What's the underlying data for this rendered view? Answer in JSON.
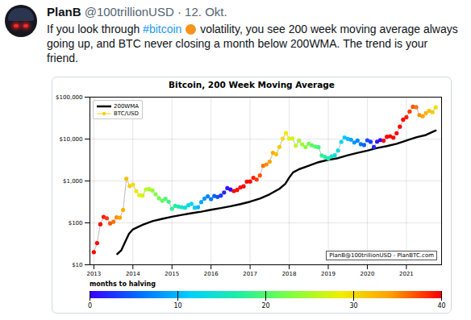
{
  "tweet": {
    "author": "PlanB",
    "handle": "@100trillionUSD",
    "separator": "·",
    "date": "12. Okt.",
    "text": "If you look through #bitcoin volatility, you see 200 week moving average always going up, and BTC never closing a month below 200WMA. The trend is your friend."
  },
  "chart_data": {
    "type": "line",
    "title": "Bitcoin, 200 Week Moving Average",
    "xlim": [
      2012.9,
      2021.9
    ],
    "xticks": [
      2013,
      2014,
      2015,
      2016,
      2017,
      2018,
      2019,
      2020,
      2021
    ],
    "log": "y",
    "ylim": [
      10,
      100000
    ],
    "yticks": [
      {
        "value": 10,
        "label": "$10"
      },
      {
        "value": 100,
        "label": "$100"
      },
      {
        "value": 1000,
        "label": "$1,000"
      },
      {
        "value": 10000,
        "label": "$10,000"
      },
      {
        "value": 100000,
        "label": "$100,000"
      }
    ],
    "grid": true,
    "legend": "upper left",
    "series": [
      {
        "name": "200WMA",
        "color": "#000000",
        "type": "line",
        "x": [
          2013.6,
          2013.7,
          2013.8,
          2013.9,
          2014.0,
          2014.25,
          2014.5,
          2014.75,
          2015.0,
          2015.25,
          2015.5,
          2015.75,
          2016.0,
          2016.25,
          2016.5,
          2016.75,
          2017.0,
          2017.25,
          2017.5,
          2017.75,
          2017.9,
          2018.0,
          2018.1,
          2018.25,
          2018.5,
          2018.75,
          2019.0,
          2019.25,
          2019.5,
          2019.75,
          2020.0,
          2020.25,
          2020.5,
          2020.75,
          2021.0,
          2021.25,
          2021.5,
          2021.75
        ],
        "values": [
          18,
          22,
          35,
          55,
          70,
          90,
          110,
          125,
          140,
          155,
          170,
          185,
          205,
          225,
          250,
          280,
          320,
          380,
          480,
          650,
          850,
          1200,
          1600,
          1900,
          2300,
          2800,
          3200,
          3500,
          4100,
          4700,
          5300,
          6100,
          6800,
          7700,
          9200,
          11000,
          12500,
          16000
        ]
      },
      {
        "name": "BTC/USD",
        "color": "#f2d21b",
        "type": "line",
        "marker": "circle",
        "x": [
          2013,
          2013.083,
          2013.167,
          2013.25,
          2013.333,
          2013.417,
          2013.5,
          2013.583,
          2013.667,
          2013.75,
          2013.833,
          2013.917,
          2014,
          2014.083,
          2014.167,
          2014.25,
          2014.333,
          2014.417,
          2014.5,
          2014.583,
          2014.667,
          2014.75,
          2014.833,
          2014.917,
          2015,
          2015.083,
          2015.167,
          2015.25,
          2015.333,
          2015.417,
          2015.5,
          2015.583,
          2015.667,
          2015.75,
          2015.833,
          2015.917,
          2016,
          2016.083,
          2016.167,
          2016.25,
          2016.333,
          2016.417,
          2016.5,
          2016.583,
          2016.667,
          2016.75,
          2016.833,
          2016.917,
          2017,
          2017.083,
          2017.167,
          2017.25,
          2017.333,
          2017.417,
          2017.5,
          2017.583,
          2017.667,
          2017.75,
          2017.833,
          2017.917,
          2018,
          2018.083,
          2018.167,
          2018.25,
          2018.333,
          2018.417,
          2018.5,
          2018.583,
          2018.667,
          2018.75,
          2018.833,
          2018.917,
          2019,
          2019.083,
          2019.167,
          2019.25,
          2019.333,
          2019.417,
          2019.5,
          2019.583,
          2019.667,
          2019.75,
          2019.833,
          2019.917,
          2020,
          2020.083,
          2020.167,
          2020.25,
          2020.333,
          2020.417,
          2020.5,
          2020.583,
          2020.667,
          2020.75,
          2020.833,
          2020.917,
          2021,
          2021.083,
          2021.167,
          2021.25,
          2021.333,
          2021.417,
          2021.5,
          2021.583,
          2021.667,
          2021.75
        ],
        "values": [
          20,
          33,
          93,
          139,
          129,
          97,
          106,
          135,
          133,
          204,
          1130,
          757,
          820,
          573,
          458,
          447,
          628,
          640,
          589,
          480,
          387,
          338,
          375,
          320,
          217,
          254,
          244,
          236,
          230,
          263,
          284,
          230,
          236,
          314,
          378,
          430,
          369,
          437,
          416,
          448,
          531,
          673,
          624,
          575,
          609,
          701,
          745,
          964,
          970,
          1190,
          1080,
          1350,
          2300,
          2480,
          2880,
          4700,
          4340,
          6470,
          10200,
          13860,
          10220,
          10330,
          6930,
          9240,
          7490,
          6390,
          7730,
          7030,
          6630,
          6370,
          4040,
          3740,
          3460,
          3850,
          4100,
          5320,
          8570,
          10820,
          10080,
          9630,
          8290,
          9200,
          7570,
          7190,
          9350,
          8600,
          6440,
          8660,
          9460,
          9140,
          11350,
          11680,
          10780,
          13800,
          19700,
          29000,
          33100,
          45200,
          58900,
          57700,
          37300,
          35000,
          41500,
          47100,
          43800,
          57000
        ],
        "months_to_halving": [
          42,
          41,
          40,
          39,
          38,
          37,
          36,
          35,
          34,
          33,
          32,
          31,
          30,
          29,
          28,
          27,
          26,
          25,
          24,
          23,
          22,
          21,
          20,
          19,
          18,
          17,
          16,
          15,
          14,
          13,
          12,
          11,
          10,
          9,
          8,
          7,
          6,
          5,
          4,
          3,
          2,
          1,
          0,
          45,
          44,
          43,
          42,
          41,
          40,
          39,
          38,
          37,
          36,
          35,
          34,
          33,
          32,
          31,
          30,
          29,
          28,
          27,
          26,
          25,
          24,
          23,
          22,
          21,
          20,
          19,
          18,
          17,
          16,
          15,
          14,
          13,
          12,
          11,
          10,
          9,
          8,
          7,
          6,
          5,
          4,
          3,
          2,
          1,
          0,
          46,
          45,
          44,
          43,
          42,
          41,
          40,
          39,
          38,
          37,
          36,
          35,
          34,
          33,
          32,
          31,
          30
        ]
      }
    ],
    "annotations": [
      {
        "text": "PlanB@100trillionUSD - PlanBTC.com"
      }
    ],
    "colorbar": {
      "label": "months to halving",
      "lim": [
        0,
        40
      ],
      "ticks": [
        0,
        10,
        20,
        30,
        40
      ]
    }
  }
}
